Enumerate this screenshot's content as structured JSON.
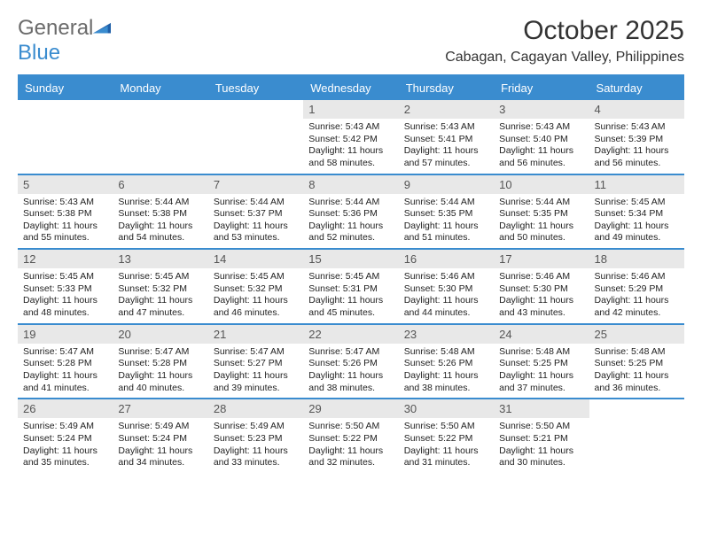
{
  "logo": {
    "word1": "General",
    "word2": "Blue"
  },
  "title": "October 2025",
  "location": "Cabagan, Cagayan Valley, Philippines",
  "colors": {
    "accent": "#3a8ccf",
    "dayHeaderBg": "#e8e8e8",
    "textGray": "#6b6b6b",
    "text": "#222222",
    "background": "#ffffff"
  },
  "dows": [
    "Sunday",
    "Monday",
    "Tuesday",
    "Wednesday",
    "Thursday",
    "Friday",
    "Saturday"
  ],
  "weeks": [
    [
      null,
      null,
      null,
      {
        "n": "1",
        "sr": "5:43 AM",
        "ss": "5:42 PM",
        "dl": "11 hours and 58 minutes."
      },
      {
        "n": "2",
        "sr": "5:43 AM",
        "ss": "5:41 PM",
        "dl": "11 hours and 57 minutes."
      },
      {
        "n": "3",
        "sr": "5:43 AM",
        "ss": "5:40 PM",
        "dl": "11 hours and 56 minutes."
      },
      {
        "n": "4",
        "sr": "5:43 AM",
        "ss": "5:39 PM",
        "dl": "11 hours and 56 minutes."
      }
    ],
    [
      {
        "n": "5",
        "sr": "5:43 AM",
        "ss": "5:38 PM",
        "dl": "11 hours and 55 minutes."
      },
      {
        "n": "6",
        "sr": "5:44 AM",
        "ss": "5:38 PM",
        "dl": "11 hours and 54 minutes."
      },
      {
        "n": "7",
        "sr": "5:44 AM",
        "ss": "5:37 PM",
        "dl": "11 hours and 53 minutes."
      },
      {
        "n": "8",
        "sr": "5:44 AM",
        "ss": "5:36 PM",
        "dl": "11 hours and 52 minutes."
      },
      {
        "n": "9",
        "sr": "5:44 AM",
        "ss": "5:35 PM",
        "dl": "11 hours and 51 minutes."
      },
      {
        "n": "10",
        "sr": "5:44 AM",
        "ss": "5:35 PM",
        "dl": "11 hours and 50 minutes."
      },
      {
        "n": "11",
        "sr": "5:45 AM",
        "ss": "5:34 PM",
        "dl": "11 hours and 49 minutes."
      }
    ],
    [
      {
        "n": "12",
        "sr": "5:45 AM",
        "ss": "5:33 PM",
        "dl": "11 hours and 48 minutes."
      },
      {
        "n": "13",
        "sr": "5:45 AM",
        "ss": "5:32 PM",
        "dl": "11 hours and 47 minutes."
      },
      {
        "n": "14",
        "sr": "5:45 AM",
        "ss": "5:32 PM",
        "dl": "11 hours and 46 minutes."
      },
      {
        "n": "15",
        "sr": "5:45 AM",
        "ss": "5:31 PM",
        "dl": "11 hours and 45 minutes."
      },
      {
        "n": "16",
        "sr": "5:46 AM",
        "ss": "5:30 PM",
        "dl": "11 hours and 44 minutes."
      },
      {
        "n": "17",
        "sr": "5:46 AM",
        "ss": "5:30 PM",
        "dl": "11 hours and 43 minutes."
      },
      {
        "n": "18",
        "sr": "5:46 AM",
        "ss": "5:29 PM",
        "dl": "11 hours and 42 minutes."
      }
    ],
    [
      {
        "n": "19",
        "sr": "5:47 AM",
        "ss": "5:28 PM",
        "dl": "11 hours and 41 minutes."
      },
      {
        "n": "20",
        "sr": "5:47 AM",
        "ss": "5:28 PM",
        "dl": "11 hours and 40 minutes."
      },
      {
        "n": "21",
        "sr": "5:47 AM",
        "ss": "5:27 PM",
        "dl": "11 hours and 39 minutes."
      },
      {
        "n": "22",
        "sr": "5:47 AM",
        "ss": "5:26 PM",
        "dl": "11 hours and 38 minutes."
      },
      {
        "n": "23",
        "sr": "5:48 AM",
        "ss": "5:26 PM",
        "dl": "11 hours and 38 minutes."
      },
      {
        "n": "24",
        "sr": "5:48 AM",
        "ss": "5:25 PM",
        "dl": "11 hours and 37 minutes."
      },
      {
        "n": "25",
        "sr": "5:48 AM",
        "ss": "5:25 PM",
        "dl": "11 hours and 36 minutes."
      }
    ],
    [
      {
        "n": "26",
        "sr": "5:49 AM",
        "ss": "5:24 PM",
        "dl": "11 hours and 35 minutes."
      },
      {
        "n": "27",
        "sr": "5:49 AM",
        "ss": "5:24 PM",
        "dl": "11 hours and 34 minutes."
      },
      {
        "n": "28",
        "sr": "5:49 AM",
        "ss": "5:23 PM",
        "dl": "11 hours and 33 minutes."
      },
      {
        "n": "29",
        "sr": "5:50 AM",
        "ss": "5:22 PM",
        "dl": "11 hours and 32 minutes."
      },
      {
        "n": "30",
        "sr": "5:50 AM",
        "ss": "5:22 PM",
        "dl": "11 hours and 31 minutes."
      },
      {
        "n": "31",
        "sr": "5:50 AM",
        "ss": "5:21 PM",
        "dl": "11 hours and 30 minutes."
      },
      null
    ]
  ],
  "labels": {
    "sunrise": "Sunrise:",
    "sunset": "Sunset:",
    "daylight": "Daylight:"
  }
}
